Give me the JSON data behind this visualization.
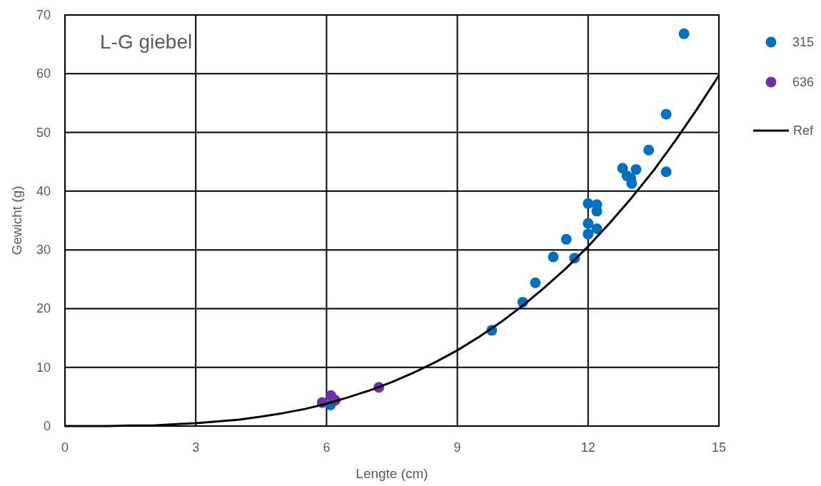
{
  "chart_data": {
    "type": "scatter",
    "title": "L-G giebel",
    "xlabel": "Lengte (cm)",
    "ylabel": "Gewicht (g)",
    "xlim": [
      0,
      15
    ],
    "xticks": [
      0,
      3,
      6,
      9,
      12,
      15
    ],
    "ylim": [
      0,
      70
    ],
    "yticks": [
      0,
      10,
      20,
      30,
      40,
      50,
      60,
      70
    ],
    "grid": true,
    "legend": "right",
    "marker": "circle",
    "series": [
      {
        "name": "315",
        "color": "#0070c0",
        "x": [
          9.79,
          10.5,
          10.79,
          11.2,
          11.69,
          11.5,
          12.0,
          12.0,
          12.2,
          12.0,
          12.2,
          12.2,
          12.79,
          12.89,
          12.98,
          13.0,
          13.1,
          13.39,
          13.79,
          13.79,
          14.2,
          6.09
        ],
        "values": [
          16.3,
          21.1,
          24.4,
          28.8,
          28.6,
          31.8,
          32.7,
          34.5,
          33.6,
          37.9,
          37.7,
          36.6,
          43.9,
          42.6,
          42.2,
          41.3,
          43.7,
          47.0,
          53.1,
          43.3,
          66.8,
          3.6
        ]
      },
      {
        "name": "636",
        "color": "#7030a0",
        "x": [
          5.9,
          6.1,
          6.2,
          7.2
        ],
        "values": [
          4.0,
          5.2,
          4.4,
          6.6
        ]
      },
      {
        "name": "Ref",
        "type": "line",
        "marker": "none",
        "color": "#000000",
        "x": [
          0,
          0.5,
          1,
          1.5,
          2,
          2.5,
          3,
          3.5,
          4,
          4.5,
          5,
          5.5,
          6,
          6.5,
          7,
          7.5,
          8,
          8.5,
          9,
          9.5,
          10,
          10.5,
          11,
          11.5,
          12,
          12.5,
          13,
          13.5,
          14,
          14.5,
          15
        ],
        "values": [
          0,
          0,
          0,
          0.1,
          0.1,
          0.3,
          0.5,
          0.8,
          1.1,
          1.6,
          2.2,
          2.9,
          3.8,
          4.9,
          6.1,
          7.5,
          9.1,
          10.9,
          12.9,
          15.2,
          17.7,
          20.5,
          23.6,
          26.9,
          30.6,
          34.6,
          38.9,
          43.5,
          48.6,
          54,
          59.7
        ]
      }
    ]
  }
}
